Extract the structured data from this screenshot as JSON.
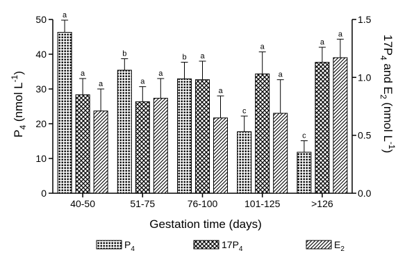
{
  "chart_data": {
    "type": "bar",
    "xlabel": "Gestation time (days)",
    "ylabel_left": {
      "main": "P",
      "sub": "4",
      "after": " (nmol L",
      "sup": "-1",
      "close": ")"
    },
    "ylabel_right": {
      "p1": "17P",
      "s1": "4",
      "p2": " and E",
      "s2": "2",
      "p3": " (nmol L",
      "sup": "-1",
      "close": ")"
    },
    "left_axis": {
      "min": 0,
      "max": 50,
      "ticks": [
        "0",
        "10",
        "20",
        "30",
        "40",
        "50"
      ]
    },
    "right_axis": {
      "min": 0,
      "max": 1.5,
      "ticks": [
        "0.0",
        "0.5",
        "1.0",
        "1.5"
      ]
    },
    "categories": [
      "40-50",
      "51-75",
      "76-100",
      "101-125",
      ">126"
    ],
    "series": [
      {
        "name": "P",
        "sub": "4",
        "axis": "left",
        "pattern": "dots",
        "values": [
          46.3,
          35.4,
          32.9,
          17.7,
          11.8
        ],
        "errors": [
          3.5,
          3.3,
          4.8,
          4.5,
          3.3
        ],
        "letters": [
          "a",
          "b",
          "b",
          "c",
          "c"
        ]
      },
      {
        "name": "17P",
        "sub": "4",
        "axis": "right",
        "pattern": "cross",
        "values": [
          0.85,
          0.79,
          0.98,
          1.03,
          1.13
        ],
        "errors": [
          0.14,
          0.13,
          0.16,
          0.19,
          0.13
        ],
        "letters": [
          "a",
          "a",
          "a",
          "a",
          "a"
        ]
      },
      {
        "name": "E",
        "sub": "2",
        "axis": "right",
        "pattern": "diagonal",
        "values": [
          0.71,
          0.82,
          0.65,
          0.69,
          1.17
        ],
        "errors": [
          0.19,
          0.17,
          0.19,
          0.29,
          0.16
        ],
        "letters": [
          "a",
          "a",
          "a",
          "a",
          "a"
        ]
      }
    ]
  }
}
